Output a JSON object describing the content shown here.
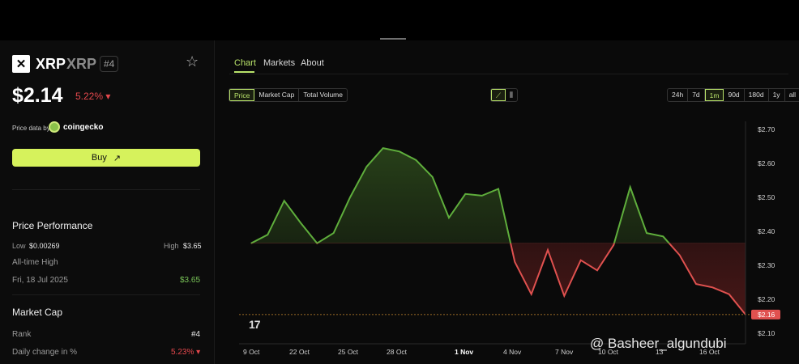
{
  "coin": {
    "logo_letter": "✕",
    "name": "XRP",
    "symbol": "XRP",
    "rank_badge": "#4",
    "price": "$2.14",
    "change": "5.22% ▾",
    "price_data_label": "Price data by",
    "provider": "coingecko",
    "buy_label": "Buy",
    "buy_icon": "↗"
  },
  "performance": {
    "title": "Price Performance",
    "low_label": "Low",
    "low_value": "$0.00269",
    "high_label": "High",
    "high_value": "$3.65",
    "ath_label": "All-time High",
    "ath_date": "Fri, 18 Jul 2025",
    "ath_value": "$3.65"
  },
  "market_cap": {
    "title": "Market Cap",
    "rank_label": "Rank",
    "rank_value": "#4",
    "daily_label": "Daily change in %",
    "daily_value": "5.23% ▾"
  },
  "tabs": [
    "Chart",
    "Markets",
    "About"
  ],
  "metric_toggle": [
    "Price",
    "Market Cap",
    "Total Volume"
  ],
  "ranges": [
    "24h",
    "7d",
    "1m",
    "90d",
    "180d",
    "1y",
    "all"
  ],
  "colors": {
    "up": "#5fae3c",
    "down": "#e0514f",
    "accent": "#b9e36a",
    "current_price_tag": "#e0514f"
  },
  "chart_data": {
    "type": "line",
    "x_tick_labels": [
      "9 Oct",
      "22 Oct",
      "25 Oct",
      "28 Oct",
      "1 Nov",
      "4 Nov",
      "7 Nov",
      "10 Oct",
      "13",
      "16 Oct"
    ],
    "y_ticks": [
      "$2.70",
      "$2.60",
      "$2.50",
      "$2.40",
      "$2.30",
      "$2.20",
      "$2.10"
    ],
    "ylim": [
      2.1,
      2.7
    ],
    "baseline": 2.365,
    "current_price_label": "$2.16",
    "current_price": 2.155,
    "values": [
      2.365,
      2.39,
      2.49,
      2.425,
      2.365,
      2.395,
      2.5,
      2.59,
      2.645,
      2.635,
      2.61,
      2.56,
      2.44,
      2.51,
      2.505,
      2.525,
      2.31,
      2.215,
      2.345,
      2.21,
      2.315,
      2.285,
      2.36,
      2.53,
      2.395,
      2.385,
      2.33,
      2.245,
      2.235,
      2.215,
      2.155
    ],
    "grid": false
  },
  "branding": {
    "chart_logo": "17",
    "watermark": "@ Basheer_algundubi"
  }
}
